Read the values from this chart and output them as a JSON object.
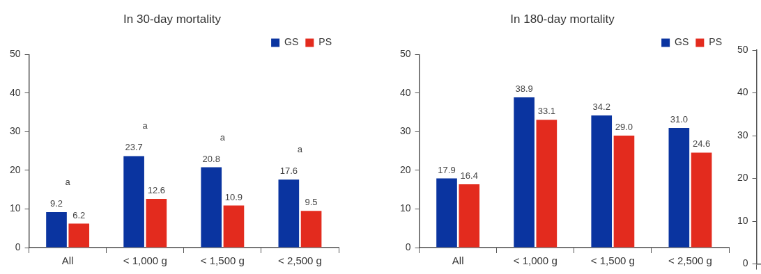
{
  "chart_data": [
    {
      "type": "bar",
      "title": "In 30-day mortality",
      "categories": [
        "All",
        "< 1,000 g",
        "< 1,500 g",
        "< 2,500 g"
      ],
      "series": [
        {
          "name": "GS",
          "color": "#0a34a0",
          "values": [
            9.2,
            23.7,
            20.8,
            17.6
          ],
          "value_labels": [
            "9.2",
            "23.7",
            "20.8",
            "17.6"
          ]
        },
        {
          "name": "PS",
          "color": "#e32b1e",
          "values": [
            6.2,
            12.6,
            10.9,
            9.5
          ],
          "value_labels": [
            "6.2",
            "12.6",
            "10.9",
            "9.5"
          ]
        }
      ],
      "annotations": [
        "a",
        "a",
        "a",
        "a"
      ],
      "ylim": [
        0,
        50
      ],
      "yticks": [
        0,
        10,
        20,
        30,
        40,
        50
      ],
      "grid": false,
      "legend": "top right"
    },
    {
      "type": "bar",
      "title": "In 180-day mortality",
      "categories": [
        "All",
        "< 1,000 g",
        "< 1,500 g",
        "< 2,500 g"
      ],
      "series": [
        {
          "name": "GS",
          "color": "#0a34a0",
          "values": [
            17.9,
            38.9,
            34.2,
            31.0
          ],
          "value_labels": [
            "17.9",
            "38.9",
            "34.2",
            "31.0"
          ]
        },
        {
          "name": "PS",
          "color": "#e32b1e",
          "values": [
            16.4,
            33.1,
            29.0,
            24.6
          ],
          "value_labels": [
            "16.4",
            "33.1",
            "29.0",
            "24.6"
          ]
        }
      ],
      "ylim": [
        0,
        50
      ],
      "yticks": [
        0,
        10,
        20,
        30,
        40,
        50
      ],
      "grid": false,
      "legend": "top right"
    },
    {
      "type": "bar",
      "categories": [
        null
      ],
      "series": [
        {
          "values": [
            null
          ]
        }
      ],
      "ylim": [
        0,
        50
      ],
      "yticks": [
        0,
        10,
        20,
        30,
        40,
        50
      ],
      "tick_labels": "y"
    }
  ]
}
